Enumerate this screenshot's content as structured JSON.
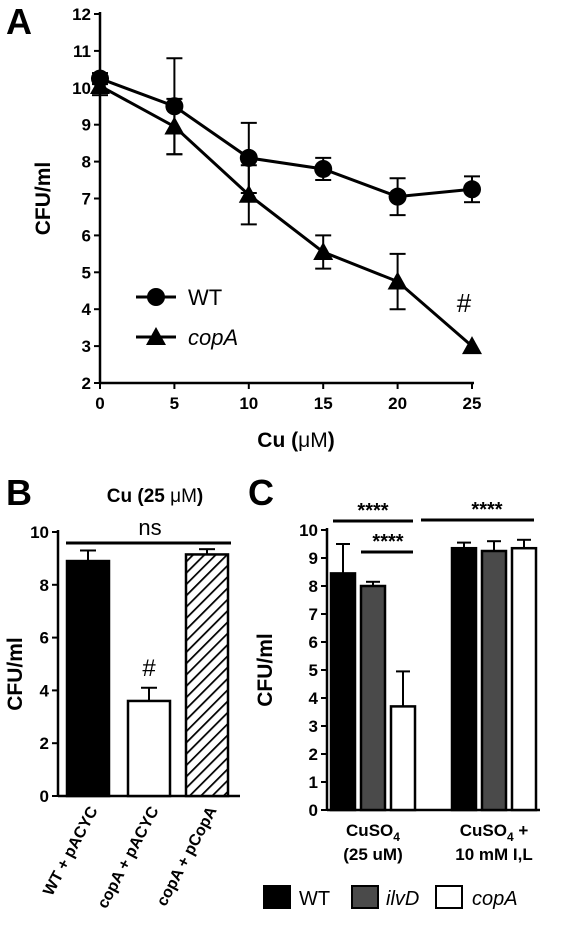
{
  "chart_data": [
    {
      "panel": "A",
      "type": "line",
      "title": "",
      "xlabel": "Cu (μM)",
      "xlabel_parts": [
        "Cu (",
        "μM",
        ")"
      ],
      "ylabel": "CFU/ml",
      "x": [
        0,
        5,
        10,
        15,
        20,
        25
      ],
      "xlim": [
        0,
        25
      ],
      "ylim": [
        2,
        12
      ],
      "xticks": [
        "0",
        "5",
        "10",
        "15",
        "20",
        "25"
      ],
      "yticks": [
        "2",
        "3",
        "4",
        "5",
        "6",
        "7",
        "8",
        "9",
        "10",
        "11",
        "12"
      ],
      "grid": false,
      "legend_position": "lower-left",
      "series": [
        {
          "name": "WT",
          "marker": "circle",
          "values": [
            10.25,
            9.5,
            8.1,
            7.8,
            7.05,
            7.25
          ],
          "err": [
            0.15,
            1.3,
            0.95,
            0.3,
            0.5,
            0.35
          ]
        },
        {
          "name": "copA",
          "marker": "triangle",
          "values": [
            10.05,
            8.95,
            7.1,
            5.55,
            4.75,
            3.0
          ],
          "err": [
            0.25,
            0.75,
            0.8,
            0.45,
            0.75,
            0.0
          ]
        }
      ],
      "annotations": [
        {
          "text": "#",
          "x": 25,
          "y": 3.6
        }
      ]
    },
    {
      "panel": "B",
      "type": "bar",
      "title": "Cu (25 μM)",
      "title_parts": [
        "Cu (25 ",
        "μM",
        ")"
      ],
      "xlabel": "",
      "ylabel": "CFU/ml",
      "categories": [
        "WT + pACYC",
        "copA + pACYC",
        "copA + pCopA"
      ],
      "values": [
        8.9,
        3.6,
        9.15
      ],
      "err": [
        0.4,
        0.5,
        0.2
      ],
      "fills": [
        "#000000",
        "#ffffff",
        "hatch"
      ],
      "ylim": [
        0,
        10
      ],
      "yticks": [
        "0",
        "2",
        "4",
        "6",
        "8",
        "10"
      ],
      "annotations": [
        {
          "text": "#",
          "category": 1
        },
        {
          "text": "ns",
          "from": 0,
          "to": 2
        }
      ]
    },
    {
      "panel": "C",
      "type": "bar",
      "title": "",
      "xlabel": "",
      "ylabel": "CFU/ml",
      "groups": [
        {
          "label": "CuSO4 (25 uM)",
          "label_line1": "CuSO",
          "label_sub": "4",
          "label_line2": "(25 uM)"
        },
        {
          "label": "CuSO4 + 10 mM I,L",
          "label_line1": "CuSO",
          "label_sub": "4",
          "label_line1_tail": " +",
          "label_line2": "10 mM I,L"
        }
      ],
      "series": [
        {
          "name": "WT",
          "color": "#000000",
          "values": [
            8.45,
            9.35
          ],
          "err": [
            1.05,
            0.2
          ]
        },
        {
          "name": "ilvD",
          "color": "#4a4a4a",
          "values": [
            8.0,
            9.25
          ],
          "err": [
            0.15,
            0.35
          ]
        },
        {
          "name": "copA",
          "color": "#ffffff",
          "values": [
            3.7,
            9.35
          ],
          "err": [
            1.25,
            0.3
          ]
        }
      ],
      "ylim": [
        0,
        10
      ],
      "yticks": [
        "0",
        "1",
        "2",
        "3",
        "4",
        "5",
        "6",
        "7",
        "8",
        "9",
        "10"
      ],
      "legend_position": "bottom",
      "annotations": [
        {
          "text": "****"
        },
        {
          "text": "****"
        },
        {
          "text": "****"
        }
      ]
    }
  ],
  "panel_letters": [
    "A",
    "B",
    "C"
  ]
}
